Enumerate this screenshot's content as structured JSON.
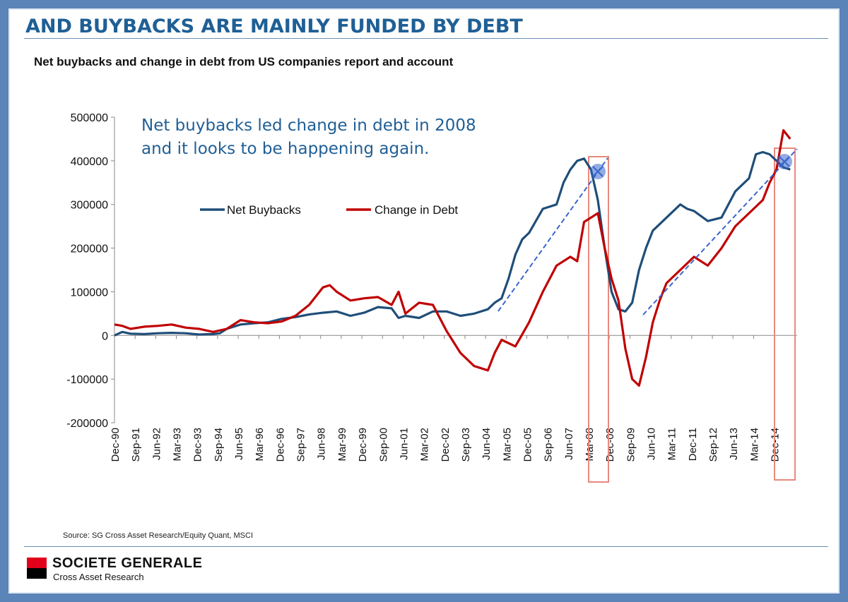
{
  "title": "AND BUYBACKS ARE MAINLY FUNDED BY DEBT",
  "subtitle": "Net buybacks and change in debt from US companies report and account",
  "source": "Source: SG Cross Asset Research/Equity Quant, MSCI",
  "brand": {
    "name": "SOCIETE GENERALE",
    "sub": "Cross Asset Research"
  },
  "colors": {
    "buybacks": "#1f4e79",
    "debt": "#c00000",
    "trend": "#3a66cc",
    "highlight": "#e8897e",
    "annotation": "#1f5f95"
  },
  "chart_data": {
    "type": "line",
    "title": "Net buybacks and change in debt from US companies report and account",
    "ylim": [
      -200000,
      500000
    ],
    "yticks": [
      -200000,
      -100000,
      0,
      100000,
      200000,
      300000,
      400000,
      500000
    ],
    "ytick_labels": [
      "-200000",
      "-100000",
      "0",
      "100000",
      "200000",
      "300000",
      "400000",
      "500000"
    ],
    "xlim": [
      1990.917,
      2015.75
    ],
    "x_tick_labels": [
      "Dec-90",
      "Sep-91",
      "Jun-92",
      "Mar-93",
      "Dec-93",
      "Sep-94",
      "Jun-95",
      "Mar-96",
      "Dec-96",
      "Sep-97",
      "Jun-98",
      "Mar-99",
      "Dec-99",
      "Sep-00",
      "Jun-01",
      "Mar-02",
      "Dec-02",
      "Sep-03",
      "Jun-04",
      "Mar-05",
      "Dec-05",
      "Sep-06",
      "Jun-07",
      "Mar-08",
      "Dec-08",
      "Sep-09",
      "Jun-10",
      "Mar-11",
      "Dec-11",
      "Sep-12",
      "Jun-13",
      "Mar-14",
      "Dec-14"
    ],
    "legend": {
      "placement": "top-center",
      "entries": [
        "Net Buybacks",
        "Change in Debt"
      ]
    },
    "annotation": {
      "line1": "Net buybacks led change in debt in 2008",
      "line2": "and it looks to be happening again."
    },
    "series": [
      {
        "name": "Net Buybacks",
        "x": [
          1990.92,
          1991.2,
          1991.5,
          1992.0,
          1992.5,
          1993.0,
          1993.5,
          1994.0,
          1994.5,
          1994.75,
          1995.0,
          1995.5,
          1996.0,
          1996.5,
          1997.0,
          1997.5,
          1998.0,
          1998.5,
          1999.0,
          1999.5,
          2000.0,
          2000.5,
          2001.0,
          2001.25,
          2001.5,
          2002.0,
          2002.5,
          2003.0,
          2003.5,
          2004.0,
          2004.5,
          2004.75,
          2005.0,
          2005.25,
          2005.5,
          2005.75,
          2006.0,
          2006.5,
          2007.0,
          2007.25,
          2007.5,
          2007.75,
          2008.0,
          2008.25,
          2008.5,
          2008.75,
          2009.0,
          2009.25,
          2009.5,
          2009.75,
          2010.0,
          2010.25,
          2010.5,
          2011.0,
          2011.5,
          2011.75,
          2012.0,
          2012.5,
          2013.0,
          2013.5,
          2014.0,
          2014.25,
          2014.5,
          2014.75,
          2015.0,
          2015.25,
          2015.5
        ],
        "y": [
          0,
          8000,
          4000,
          3000,
          5000,
          6000,
          5000,
          2000,
          3000,
          5000,
          15000,
          25000,
          28000,
          30000,
          38000,
          42000,
          48000,
          52000,
          55000,
          45000,
          52000,
          65000,
          62000,
          40000,
          45000,
          40000,
          55000,
          55000,
          45000,
          50000,
          60000,
          75000,
          85000,
          130000,
          185000,
          220000,
          235000,
          290000,
          300000,
          350000,
          380000,
          400000,
          405000,
          380000,
          310000,
          200000,
          100000,
          60000,
          55000,
          75000,
          150000,
          200000,
          240000,
          270000,
          300000,
          290000,
          285000,
          262000,
          270000,
          330000,
          360000,
          415000,
          420000,
          415000,
          400000,
          385000,
          380000
        ]
      },
      {
        "name": "Change in Debt",
        "x": [
          1990.92,
          1991.2,
          1991.5,
          1992.0,
          1992.5,
          1993.0,
          1993.5,
          1994.0,
          1994.5,
          1995.0,
          1995.5,
          1996.0,
          1996.5,
          1997.0,
          1997.5,
          1998.0,
          1998.5,
          1998.75,
          1999.0,
          1999.5,
          2000.0,
          2000.5,
          2001.0,
          2001.25,
          2001.5,
          2002.0,
          2002.5,
          2003.0,
          2003.5,
          2004.0,
          2004.5,
          2004.75,
          2005.0,
          2005.5,
          2006.0,
          2006.5,
          2007.0,
          2007.5,
          2007.75,
          2008.0,
          2008.25,
          2008.5,
          2008.75,
          2009.0,
          2009.25,
          2009.5,
          2009.75,
          2010.0,
          2010.25,
          2010.5,
          2010.75,
          2011.0,
          2011.5,
          2012.0,
          2012.5,
          2013.0,
          2013.5,
          2014.0,
          2014.5,
          2014.75,
          2015.0,
          2015.25,
          2015.5
        ],
        "y": [
          25000,
          22000,
          15000,
          20000,
          22000,
          25000,
          18000,
          15000,
          8000,
          15000,
          35000,
          30000,
          28000,
          32000,
          45000,
          70000,
          110000,
          115000,
          100000,
          80000,
          85000,
          88000,
          70000,
          100000,
          50000,
          75000,
          70000,
          10000,
          -40000,
          -70000,
          -80000,
          -40000,
          -10000,
          -25000,
          30000,
          100000,
          160000,
          180000,
          170000,
          260000,
          270000,
          280000,
          200000,
          130000,
          80000,
          -30000,
          -100000,
          -115000,
          -50000,
          30000,
          80000,
          120000,
          150000,
          180000,
          160000,
          200000,
          250000,
          280000,
          310000,
          350000,
          380000,
          470000,
          450000
        ]
      }
    ]
  }
}
